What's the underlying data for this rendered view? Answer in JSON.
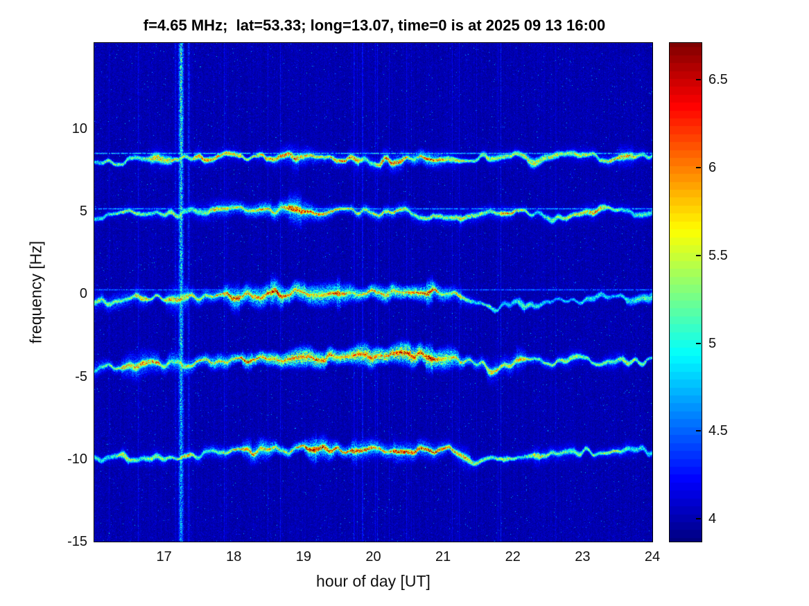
{
  "chart_data": {
    "type": "heatmap",
    "title": "f=4.65 MHz;  lat=53.33; long=13.07, time=0 is at 2025 09 13 16:00",
    "xlabel": "hour of day [UT]",
    "ylabel": "frequency [Hz]",
    "xlim": [
      16,
      24
    ],
    "ylim": [
      -15,
      15.2
    ],
    "x_ticks": [
      17,
      18,
      19,
      20,
      21,
      22,
      23,
      24
    ],
    "y_ticks": [
      10,
      5,
      0,
      -5,
      -10,
      -15
    ],
    "grid": false,
    "legend": null,
    "colormap": "jet",
    "color_axis": {
      "range": [
        3.87,
        6.71
      ],
      "ticks": [
        4,
        4.5,
        5,
        5.5,
        6,
        6.5
      ]
    },
    "background_level": 3.95,
    "interference_stripes": [
      {
        "hour": 17.24,
        "width_hours": 0.1,
        "strength": 1.35
      },
      {
        "hour": 17.35,
        "width_hours": 0.05,
        "strength": 0.55
      },
      {
        "hour": 17.16,
        "width_hours": 0.04,
        "strength": 0.45
      }
    ],
    "traces": [
      {
        "name": "doppler-line-+8.4Hz",
        "halo": 0.9,
        "flat_line": {
          "freq": 8.55,
          "level": 5.05
        },
        "path": [
          [
            16,
            8.2
          ],
          [
            16.4,
            8.0
          ],
          [
            16.8,
            8.25
          ],
          [
            17.2,
            8.1
          ],
          [
            17.6,
            8.3
          ],
          [
            18,
            8.35
          ],
          [
            18.4,
            8.25
          ],
          [
            18.8,
            8.4
          ],
          [
            19.2,
            8.45
          ],
          [
            19.6,
            8.15
          ],
          [
            20,
            8.0
          ],
          [
            20.4,
            8.15
          ],
          [
            20.8,
            8.3
          ],
          [
            21.2,
            8.15
          ],
          [
            21.6,
            8.35
          ],
          [
            22,
            8.45
          ],
          [
            22.3,
            7.9
          ],
          [
            22.6,
            8.25
          ],
          [
            23,
            8.45
          ],
          [
            23.4,
            8.1
          ],
          [
            23.7,
            8.35
          ],
          [
            24,
            8.45
          ]
        ],
        "intensity": [
          [
            16,
            5.25
          ],
          [
            16.5,
            5.35
          ],
          [
            17,
            5.45
          ],
          [
            17.5,
            5.6
          ],
          [
            18,
            5.5
          ],
          [
            18.5,
            5.65
          ],
          [
            19,
            5.8
          ],
          [
            19.5,
            5.7
          ],
          [
            20,
            5.55
          ],
          [
            20.5,
            5.95
          ],
          [
            20.8,
            6.45
          ],
          [
            21,
            5.65
          ],
          [
            21.5,
            5.35
          ],
          [
            22,
            5.5
          ],
          [
            22.5,
            5.25
          ],
          [
            23,
            5.55
          ],
          [
            23.5,
            5.75
          ],
          [
            24,
            5.45
          ]
        ]
      },
      {
        "name": "doppler-line-+5Hz",
        "halo": 1.0,
        "flat_line": {
          "freq": 5.18,
          "level": 4.95
        },
        "path": [
          [
            16,
            4.75
          ],
          [
            16.4,
            4.9
          ],
          [
            16.8,
            5.0
          ],
          [
            17.2,
            4.9
          ],
          [
            17.6,
            5.05
          ],
          [
            18,
            5.1
          ],
          [
            18.4,
            5.0
          ],
          [
            18.8,
            5.1
          ],
          [
            19.2,
            4.95
          ],
          [
            19.6,
            5.05
          ],
          [
            20,
            4.9
          ],
          [
            20.4,
            5.0
          ],
          [
            20.7,
            4.8
          ],
          [
            21,
            4.5
          ],
          [
            21.3,
            4.8
          ],
          [
            21.7,
            5.0
          ],
          [
            22,
            5.1
          ],
          [
            22.4,
            4.8
          ],
          [
            22.7,
            4.55
          ],
          [
            23,
            4.9
          ],
          [
            23.3,
            5.1
          ],
          [
            23.6,
            4.9
          ],
          [
            24,
            5.0
          ]
        ],
        "intensity": [
          [
            16,
            5.35
          ],
          [
            16.5,
            5.45
          ],
          [
            17,
            5.55
          ],
          [
            17.5,
            5.5
          ],
          [
            18,
            5.85
          ],
          [
            18.5,
            6.2
          ],
          [
            19,
            6.05
          ],
          [
            19.5,
            5.85
          ],
          [
            20,
            5.9
          ],
          [
            20.5,
            5.65
          ],
          [
            21,
            5.45
          ],
          [
            21.5,
            5.55
          ],
          [
            22,
            5.65
          ],
          [
            22.5,
            5.35
          ],
          [
            23,
            5.5
          ],
          [
            23.5,
            5.45
          ],
          [
            24,
            5.3
          ]
        ]
      },
      {
        "name": "doppler-line-0Hz",
        "halo": 1.25,
        "flat_line": {
          "freq": 0.28,
          "level": 4.72
        },
        "path": [
          [
            16,
            -0.5
          ],
          [
            16.4,
            -0.35
          ],
          [
            16.8,
            -0.2
          ],
          [
            17.2,
            -0.3
          ],
          [
            17.6,
            -0.2
          ],
          [
            18,
            -0.1
          ],
          [
            18.4,
            -0.05
          ],
          [
            18.8,
            0.05
          ],
          [
            19.2,
            0.15
          ],
          [
            19.6,
            0.2
          ],
          [
            20,
            0.1
          ],
          [
            20.4,
            0.0
          ],
          [
            20.8,
            0.2
          ],
          [
            21.1,
            0.1
          ],
          [
            21.4,
            -0.3
          ],
          [
            21.7,
            -0.9
          ],
          [
            22,
            -0.5
          ],
          [
            22.3,
            -0.85
          ],
          [
            22.6,
            -0.25
          ],
          [
            23,
            -0.45
          ],
          [
            23.3,
            0.0
          ],
          [
            23.7,
            -0.25
          ],
          [
            24,
            -0.05
          ]
        ],
        "intensity": [
          [
            16,
            5.45
          ],
          [
            16.5,
            5.6
          ],
          [
            17,
            5.5
          ],
          [
            17.5,
            5.7
          ],
          [
            18,
            5.95
          ],
          [
            18.5,
            6.15
          ],
          [
            19,
            6.25
          ],
          [
            19.5,
            6.05
          ],
          [
            20,
            6.15
          ],
          [
            20.5,
            6.35
          ],
          [
            21,
            5.95
          ],
          [
            21.3,
            5.5
          ],
          [
            21.7,
            5.05
          ],
          [
            22,
            4.95
          ],
          [
            22.3,
            5.2
          ],
          [
            22.6,
            4.85
          ],
          [
            23,
            5.05
          ],
          [
            23.3,
            5.3
          ],
          [
            23.7,
            4.9
          ],
          [
            24,
            5.0
          ]
        ]
      },
      {
        "name": "doppler-line--4Hz",
        "halo": 1.3,
        "flat_line": null,
        "path": [
          [
            16,
            -4.5
          ],
          [
            16.4,
            -4.35
          ],
          [
            16.8,
            -4.25
          ],
          [
            17.2,
            -4.2
          ],
          [
            17.6,
            -4.1
          ],
          [
            18,
            -4.0
          ],
          [
            18.4,
            -3.95
          ],
          [
            18.8,
            -3.85
          ],
          [
            19.2,
            -3.8
          ],
          [
            19.6,
            -3.9
          ],
          [
            20,
            -3.8
          ],
          [
            20.4,
            -3.7
          ],
          [
            20.8,
            -3.75
          ],
          [
            21.1,
            -3.85
          ],
          [
            21.4,
            -4.0
          ],
          [
            21.7,
            -4.6
          ],
          [
            22,
            -4.2
          ],
          [
            22.3,
            -4.0
          ],
          [
            22.6,
            -4.1
          ],
          [
            22.9,
            -3.9
          ],
          [
            23.2,
            -4.2
          ],
          [
            23.5,
            -3.95
          ],
          [
            23.8,
            -4.1
          ],
          [
            24,
            -4.0
          ]
        ],
        "intensity": [
          [
            16,
            5.5
          ],
          [
            16.5,
            5.6
          ],
          [
            17,
            5.7
          ],
          [
            17.5,
            5.8
          ],
          [
            18,
            6.0
          ],
          [
            18.5,
            6.3
          ],
          [
            19,
            6.4
          ],
          [
            19.5,
            6.3
          ],
          [
            20,
            6.45
          ],
          [
            20.5,
            6.5
          ],
          [
            21,
            6.2
          ],
          [
            21.3,
            5.85
          ],
          [
            21.7,
            5.45
          ],
          [
            22,
            5.6
          ],
          [
            22.5,
            5.55
          ],
          [
            23,
            5.35
          ],
          [
            23.5,
            5.45
          ],
          [
            24,
            5.05
          ]
        ]
      },
      {
        "name": "doppler-line--9.5Hz",
        "halo": 1.0,
        "flat_line": null,
        "path": [
          [
            16,
            -10.0
          ],
          [
            16.4,
            -9.9
          ],
          [
            16.8,
            -9.8
          ],
          [
            17.2,
            -9.9
          ],
          [
            17.6,
            -9.7
          ],
          [
            18,
            -9.6
          ],
          [
            18.4,
            -9.5
          ],
          [
            18.8,
            -9.4
          ],
          [
            19.2,
            -9.3
          ],
          [
            19.6,
            -9.4
          ],
          [
            20,
            -9.35
          ],
          [
            20.4,
            -9.4
          ],
          [
            20.8,
            -9.5
          ],
          [
            21.1,
            -9.4
          ],
          [
            21.4,
            -10.2
          ],
          [
            21.7,
            -9.9
          ],
          [
            22,
            -10.0
          ],
          [
            22.3,
            -9.6
          ],
          [
            22.6,
            -9.75
          ],
          [
            23,
            -9.5
          ],
          [
            23.3,
            -9.6
          ],
          [
            23.6,
            -9.4
          ],
          [
            24,
            -9.5
          ]
        ],
        "intensity": [
          [
            16,
            5.25
          ],
          [
            16.5,
            5.4
          ],
          [
            17,
            5.5
          ],
          [
            17.5,
            5.6
          ],
          [
            18,
            5.8
          ],
          [
            18.5,
            6.1
          ],
          [
            19,
            6.3
          ],
          [
            19.5,
            6.2
          ],
          [
            20,
            6.0
          ],
          [
            20.5,
            5.9
          ],
          [
            21,
            5.8
          ],
          [
            21.4,
            5.5
          ],
          [
            21.7,
            5.3
          ],
          [
            22,
            5.45
          ],
          [
            22.5,
            5.6
          ],
          [
            23,
            5.4
          ],
          [
            23.5,
            5.7
          ],
          [
            24,
            5.0
          ]
        ]
      }
    ]
  }
}
